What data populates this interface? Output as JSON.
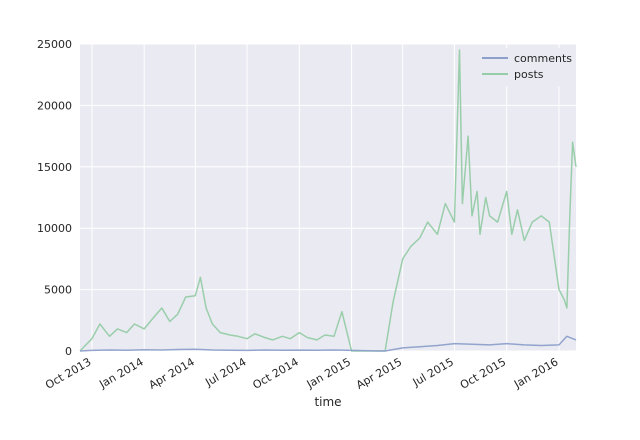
{
  "chart_data": {
    "type": "line",
    "xlabel": "time",
    "ylabel": "",
    "ylim": [
      0,
      25000
    ],
    "xlim": [
      "2013-09-10",
      "2016-01-31"
    ],
    "grid": true,
    "legend_position": "top-right",
    "yticks": [
      0,
      5000,
      10000,
      15000,
      20000,
      25000
    ],
    "xticks": [
      {
        "date": "2013-10-01",
        "label": "Oct 2013"
      },
      {
        "date": "2014-01-01",
        "label": "Jan 2014"
      },
      {
        "date": "2014-04-01",
        "label": "Apr 2014"
      },
      {
        "date": "2014-07-01",
        "label": "Jul 2014"
      },
      {
        "date": "2014-10-01",
        "label": "Oct 2014"
      },
      {
        "date": "2015-01-01",
        "label": "Jan 2015"
      },
      {
        "date": "2015-04-01",
        "label": "Apr 2015"
      },
      {
        "date": "2015-07-01",
        "label": "Jul 2015"
      },
      {
        "date": "2015-10-01",
        "label": "Oct 2015"
      },
      {
        "date": "2016-01-01",
        "label": "Jan 2016"
      }
    ],
    "series": [
      {
        "name": "comments",
        "color": "#8da0cb",
        "x": [
          "2013-09-10",
          "2013-10-01",
          "2013-11-01",
          "2013-12-01",
          "2014-01-01",
          "2014-02-01",
          "2014-03-01",
          "2014-04-01",
          "2014-05-01",
          "2014-06-01",
          "2014-07-01",
          "2014-08-01",
          "2014-09-01",
          "2014-10-01",
          "2014-11-01",
          "2014-12-01",
          "2015-03-01",
          "2015-04-01",
          "2015-05-01",
          "2015-06-01",
          "2015-07-01",
          "2015-08-01",
          "2015-09-01",
          "2015-10-01",
          "2015-11-01",
          "2015-12-01",
          "2016-01-01",
          "2016-01-15",
          "2016-01-31"
        ],
        "y": [
          0,
          50,
          80,
          60,
          100,
          80,
          120,
          150,
          80,
          60,
          50,
          80,
          60,
          70,
          60,
          80,
          0,
          250,
          350,
          450,
          600,
          550,
          500,
          600,
          500,
          450,
          500,
          1200,
          900
        ]
      },
      {
        "name": "posts",
        "color": "#96cca7",
        "x": [
          "2013-09-10",
          "2013-10-01",
          "2013-10-15",
          "2013-11-01",
          "2013-11-15",
          "2013-12-01",
          "2013-12-15",
          "2014-01-01",
          "2014-01-15",
          "2014-02-01",
          "2014-02-15",
          "2014-03-01",
          "2014-03-15",
          "2014-04-01",
          "2014-04-10",
          "2014-04-20",
          "2014-05-01",
          "2014-05-15",
          "2014-06-01",
          "2014-06-15",
          "2014-07-01",
          "2014-07-15",
          "2014-08-01",
          "2014-08-15",
          "2014-09-01",
          "2014-09-15",
          "2014-10-01",
          "2014-10-15",
          "2014-11-01",
          "2014-11-15",
          "2014-12-01",
          "2014-12-15",
          "2015-01-01",
          "2015-03-01",
          "2015-03-15",
          "2015-04-01",
          "2015-04-15",
          "2015-05-01",
          "2015-05-15",
          "2015-06-01",
          "2015-06-15",
          "2015-07-01",
          "2015-07-10",
          "2015-07-15",
          "2015-07-25",
          "2015-08-01",
          "2015-08-10",
          "2015-08-15",
          "2015-08-25",
          "2015-09-01",
          "2015-09-15",
          "2015-10-01",
          "2015-10-10",
          "2015-10-20",
          "2015-11-01",
          "2015-11-15",
          "2015-12-01",
          "2015-12-15",
          "2016-01-01",
          "2016-01-10",
          "2016-01-15",
          "2016-01-20",
          "2016-01-25",
          "2016-01-31"
        ],
        "y": [
          0,
          1000,
          2200,
          1200,
          1800,
          1500,
          2200,
          1800,
          2600,
          3500,
          2400,
          3000,
          4400,
          4500,
          6000,
          3500,
          2200,
          1500,
          1300,
          1200,
          1000,
          1400,
          1100,
          900,
          1200,
          1000,
          1500,
          1100,
          900,
          1300,
          1200,
          3200,
          0,
          0,
          4000,
          7500,
          8500,
          9200,
          10500,
          9500,
          12000,
          10500,
          24500,
          12000,
          17500,
          11000,
          13000,
          9500,
          12500,
          11000,
          10500,
          13000,
          9500,
          11500,
          9000,
          10500,
          11000,
          10500,
          5000,
          4200,
          3500,
          11000,
          17000,
          15000
        ]
      }
    ]
  }
}
